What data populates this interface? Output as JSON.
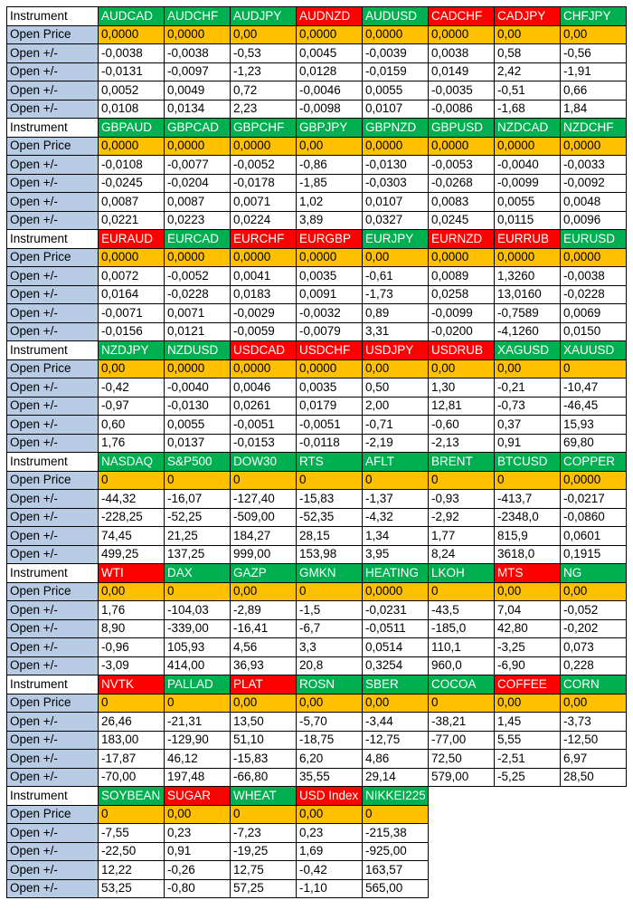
{
  "labels": {
    "instrument": "Instrument",
    "open_price": "Open Price",
    "open_delta": "Open +/-"
  },
  "colors": {
    "green": "#00b050",
    "red": "#ff0000",
    "orange": "#ffc000",
    "label_blue": "#b7cce4"
  },
  "blocks": [
    {
      "instruments": [
        {
          "name": "AUDCAD",
          "color": "green"
        },
        {
          "name": "AUDCHF",
          "color": "green"
        },
        {
          "name": "AUDJPY",
          "color": "green"
        },
        {
          "name": "AUDNZD",
          "color": "red"
        },
        {
          "name": "AUDUSD",
          "color": "green"
        },
        {
          "name": "CADCHF",
          "color": "red"
        },
        {
          "name": "CADJPY",
          "color": "red"
        },
        {
          "name": "CHFJPY",
          "color": "green"
        }
      ],
      "open_price": [
        "0,0000",
        "0,0000",
        "0,00",
        "0,0000",
        "0,0000",
        "0,0000",
        "0,00",
        "0,00"
      ],
      "rows": [
        [
          "-0,0038",
          "-0,0038",
          "-0,53",
          "0,0045",
          "-0,0039",
          "0,0038",
          "0,58",
          "-0,56"
        ],
        [
          "-0,0131",
          "-0,0097",
          "-1,23",
          "0,0128",
          "-0,0159",
          "0,0149",
          "2,42",
          "-1,91"
        ],
        [
          "0,0052",
          "0,0049",
          "0,72",
          "-0,0046",
          "0,0055",
          "-0,0035",
          "-0,51",
          "0,66"
        ],
        [
          "0,0108",
          "0,0134",
          "2,23",
          "-0,0098",
          "0,0107",
          "-0,0086",
          "-1,68",
          "1,84"
        ]
      ]
    },
    {
      "instruments": [
        {
          "name": "GBPAUD",
          "color": "green"
        },
        {
          "name": "GBPCAD",
          "color": "green"
        },
        {
          "name": "GBPCHF",
          "color": "green"
        },
        {
          "name": "GBPJPY",
          "color": "green"
        },
        {
          "name": "GBPNZD",
          "color": "green"
        },
        {
          "name": "GBPUSD",
          "color": "green"
        },
        {
          "name": "NZDCAD",
          "color": "green"
        },
        {
          "name": "NZDCHF",
          "color": "green"
        }
      ],
      "open_price": [
        "0,0000",
        "0,0000",
        "0,0000",
        "0,00",
        "0,0000",
        "0,0000",
        "0,0000",
        "0,0000"
      ],
      "rows": [
        [
          "-0,0108",
          "-0,0077",
          "-0,0052",
          "-0,86",
          "-0,0130",
          "-0,0053",
          "-0,0040",
          "-0,0033"
        ],
        [
          "-0,0245",
          "-0,0204",
          "-0,0178",
          "-1,85",
          "-0,0303",
          "-0,0268",
          "-0,0099",
          "-0,0092"
        ],
        [
          "0,0087",
          "0,0087",
          "0,0071",
          "1,02",
          "0,0107",
          "0,0083",
          "0,0055",
          "0,0048"
        ],
        [
          "0,0221",
          "0,0223",
          "0,0224",
          "3,89",
          "0,0327",
          "0,0245",
          "0,0115",
          "0,0096"
        ]
      ]
    },
    {
      "instruments": [
        {
          "name": "EURAUD",
          "color": "red"
        },
        {
          "name": "EURCAD",
          "color": "green"
        },
        {
          "name": "EURCHF",
          "color": "red"
        },
        {
          "name": "EURGBP",
          "color": "red"
        },
        {
          "name": "EURJPY",
          "color": "green"
        },
        {
          "name": "EURNZD",
          "color": "red"
        },
        {
          "name": "EURRUB",
          "color": "red"
        },
        {
          "name": "EURUSD",
          "color": "green"
        }
      ],
      "open_price": [
        "0,0000",
        "0,0000",
        "0,0000",
        "0,0000",
        "0,00",
        "0,0000",
        "0,0000",
        "0,0000"
      ],
      "rows": [
        [
          "0,0072",
          "-0,0052",
          "0,0041",
          "0,0035",
          "-0,61",
          "0,0089",
          "1,3260",
          "-0,0038"
        ],
        [
          "0,0164",
          "-0,0228",
          "0,0183",
          "0,0091",
          "-1,73",
          "0,0258",
          "13,0160",
          "-0,0228"
        ],
        [
          "-0,0071",
          "0,0071",
          "-0,0029",
          "-0,0032",
          "0,89",
          "-0,0099",
          "-0,7589",
          "0,0069"
        ],
        [
          "-0,0156",
          "0,0121",
          "-0,0059",
          "-0,0079",
          "3,31",
          "-0,0200",
          "-4,1260",
          "0,0150"
        ]
      ]
    },
    {
      "instruments": [
        {
          "name": "NZDJPY",
          "color": "green"
        },
        {
          "name": "NZDUSD",
          "color": "green"
        },
        {
          "name": "USDCAD",
          "color": "red"
        },
        {
          "name": "USDCHF",
          "color": "red"
        },
        {
          "name": "USDJPY",
          "color": "red"
        },
        {
          "name": "USDRUB",
          "color": "red"
        },
        {
          "name": "XAGUSD",
          "color": "green"
        },
        {
          "name": "XAUUSD",
          "color": "green"
        }
      ],
      "open_price": [
        "0,00",
        "0,0000",
        "0,0000",
        "0,0000",
        "0,00",
        "0,00",
        "0,00",
        "0"
      ],
      "rows": [
        [
          "-0,42",
          "-0,0040",
          "0,0046",
          "0,0035",
          "0,50",
          "1,30",
          "-0,21",
          "-10,47"
        ],
        [
          "-0,97",
          "-0,0130",
          "0,0261",
          "0,0179",
          "2,00",
          "12,81",
          "-0,73",
          "-46,45"
        ],
        [
          "0,60",
          "0,0055",
          "-0,0051",
          "-0,0051",
          "-0,71",
          "-0,60",
          "0,37",
          "15,93"
        ],
        [
          "1,76",
          "0,0137",
          "-0,0153",
          "-0,0118",
          "-2,19",
          "-2,13",
          "0,91",
          "69,80"
        ]
      ]
    },
    {
      "instruments": [
        {
          "name": "NASDAQ",
          "color": "green"
        },
        {
          "name": "S&P500",
          "color": "green"
        },
        {
          "name": "DOW30",
          "color": "green"
        },
        {
          "name": "RTS",
          "color": "green"
        },
        {
          "name": "AFLT",
          "color": "green"
        },
        {
          "name": "BRENT",
          "color": "green"
        },
        {
          "name": "BTCUSD",
          "color": "green"
        },
        {
          "name": "COPPER",
          "color": "green"
        }
      ],
      "open_price": [
        "0",
        "0",
        "0",
        "0",
        "0",
        "0",
        "0",
        "0,0000"
      ],
      "rows": [
        [
          "-44,32",
          "-16,07",
          "-127,40",
          "-15,83",
          "-1,37",
          "-0,93",
          "-413,7",
          "-0,0217"
        ],
        [
          "-228,25",
          "-52,25",
          "-509,00",
          "-52,35",
          "-4,32",
          "-2,92",
          "-2348,0",
          "-0,0860"
        ],
        [
          "74,45",
          "21,25",
          "184,27",
          "28,15",
          "1,34",
          "1,77",
          "815,9",
          "0,0601"
        ],
        [
          "499,25",
          "137,25",
          "999,00",
          "153,98",
          "3,95",
          "8,24",
          "3618,0",
          "0,1915"
        ]
      ]
    },
    {
      "instruments": [
        {
          "name": "WTI",
          "color": "red"
        },
        {
          "name": "DAX",
          "color": "green"
        },
        {
          "name": "GAZP",
          "color": "green"
        },
        {
          "name": "GMKN",
          "color": "green"
        },
        {
          "name": "HEATING",
          "color": "green"
        },
        {
          "name": "LKOH",
          "color": "green"
        },
        {
          "name": "MTS",
          "color": "red"
        },
        {
          "name": "NG",
          "color": "green"
        }
      ],
      "open_price": [
        "0,00",
        "0",
        "0,00",
        "0",
        "0,0000",
        "0",
        "0,00",
        "0,00"
      ],
      "rows": [
        [
          "1,76",
          "-104,03",
          "-2,89",
          "-1,5",
          "-0,0231",
          "-43,5",
          "7,04",
          "-0,052"
        ],
        [
          "8,90",
          "-339,00",
          "-16,41",
          "-6,7",
          "-0,0511",
          "-185,0",
          "42,80",
          "-0,202"
        ],
        [
          "-0,96",
          "105,93",
          "4,56",
          "3,3",
          "0,0514",
          "110,1",
          "-3,25",
          "0,073"
        ],
        [
          "-3,09",
          "414,00",
          "36,93",
          "20,8",
          "0,3254",
          "960,0",
          "-6,90",
          "0,228"
        ]
      ]
    },
    {
      "instruments": [
        {
          "name": "NVTK",
          "color": "red"
        },
        {
          "name": "PALLAD",
          "color": "green"
        },
        {
          "name": "PLAT",
          "color": "red"
        },
        {
          "name": "ROSN",
          "color": "green"
        },
        {
          "name": "SBER",
          "color": "green"
        },
        {
          "name": "COCOA",
          "color": "green"
        },
        {
          "name": "COFFEE",
          "color": "red"
        },
        {
          "name": "CORN",
          "color": "green"
        }
      ],
      "open_price": [
        "0",
        "0",
        "0,00",
        "0,00",
        "0,00",
        "0",
        "0,00",
        "0,00"
      ],
      "rows": [
        [
          "26,46",
          "-21,31",
          "13,50",
          "-5,70",
          "-3,44",
          "-38,21",
          "1,45",
          "-3,73"
        ],
        [
          "183,00",
          "-129,90",
          "51,10",
          "-18,75",
          "-12,75",
          "-77,00",
          "5,55",
          "-12,50"
        ],
        [
          "-17,87",
          "46,12",
          "-15,83",
          "6,20",
          "4,86",
          "72,50",
          "-2,51",
          "6,97"
        ],
        [
          "-70,00",
          "197,48",
          "-66,80",
          "35,55",
          "29,14",
          "579,00",
          "-5,25",
          "28,50"
        ]
      ]
    },
    {
      "instruments": [
        {
          "name": "SOYBEAN",
          "color": "green"
        },
        {
          "name": "SUGAR",
          "color": "red"
        },
        {
          "name": "WHEAT",
          "color": "green"
        },
        {
          "name": "USD Index",
          "color": "red"
        },
        {
          "name": "NIKKEI225",
          "color": "green"
        }
      ],
      "open_price": [
        "0",
        "0,00",
        "0",
        "0,00",
        "0"
      ],
      "rows": [
        [
          "-7,55",
          "0,23",
          "-7,23",
          "0,23",
          "-215,38"
        ],
        [
          "-22,50",
          "0,91",
          "-19,25",
          "1,69",
          "-925,00"
        ],
        [
          "12,22",
          "-0,26",
          "12,75",
          "-0,42",
          "163,57"
        ],
        [
          "53,25",
          "-0,80",
          "57,25",
          "-1,10",
          "565,00"
        ]
      ]
    }
  ]
}
